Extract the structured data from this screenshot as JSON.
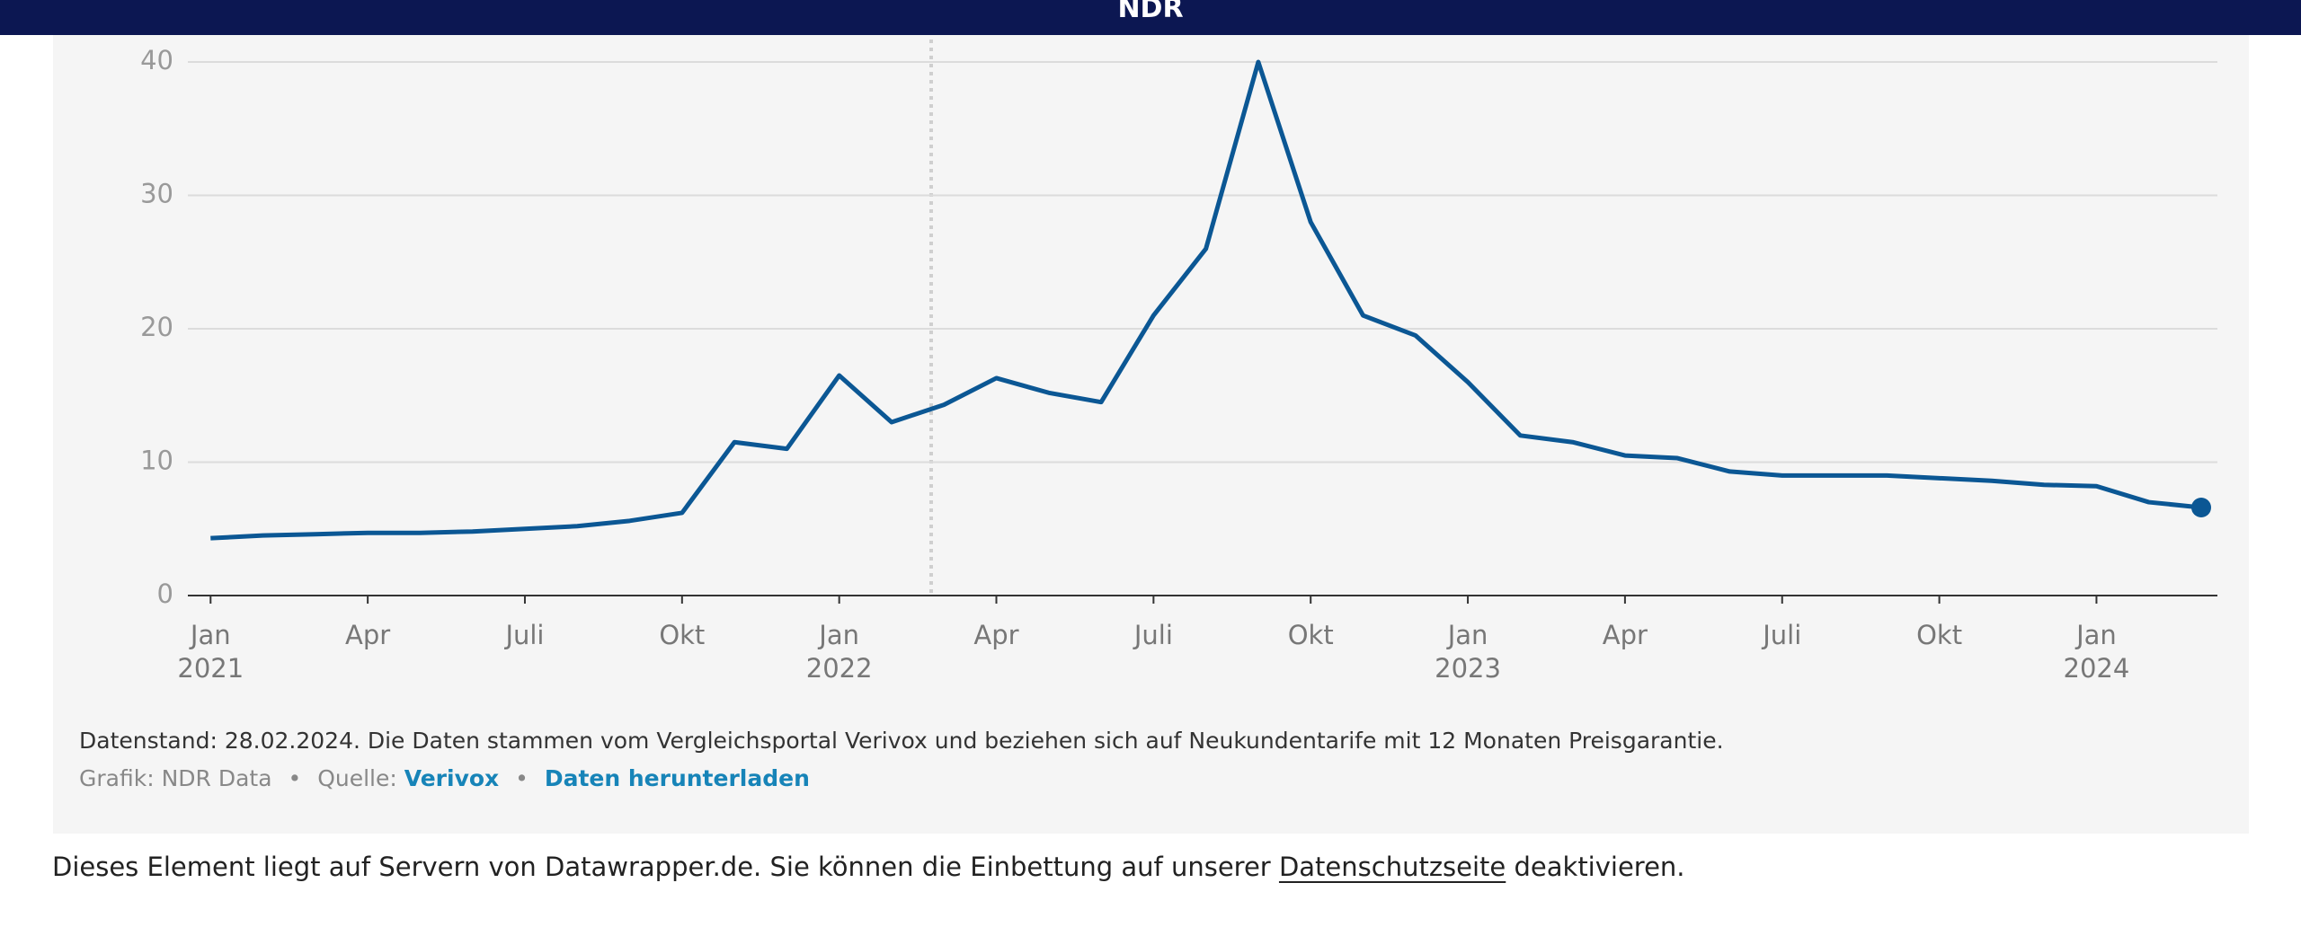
{
  "header": "NDR",
  "chart_data": {
    "type": "line",
    "x": [
      "2021-01",
      "2021-02",
      "2021-03",
      "2021-04",
      "2021-05",
      "2021-06",
      "2021-07",
      "2021-08",
      "2021-09",
      "2021-10",
      "2021-11",
      "2021-12",
      "2022-01",
      "2022-02",
      "2022-03",
      "2022-04",
      "2022-05",
      "2022-06",
      "2022-07",
      "2022-08",
      "2022-09",
      "2022-10",
      "2022-11",
      "2022-12",
      "2023-01",
      "2023-02",
      "2023-03",
      "2023-04",
      "2023-05",
      "2023-06",
      "2023-07",
      "2023-08",
      "2023-09",
      "2023-10",
      "2023-11",
      "2023-12",
      "2024-01",
      "2024-02",
      "2024-03"
    ],
    "series": [
      {
        "name": "Neukundentarif",
        "color": "#0b5794",
        "values": [
          4.3,
          4.5,
          4.6,
          4.7,
          4.7,
          4.8,
          5.0,
          5.2,
          5.6,
          6.2,
          11.5,
          11.0,
          16.5,
          13.0,
          14.3,
          16.3,
          15.2,
          14.5,
          21.0,
          26.0,
          40.0,
          28.0,
          21.0,
          19.5,
          16.0,
          12.0,
          11.5,
          10.5,
          10.3,
          9.3,
          9.0,
          9.0,
          9.0,
          8.8,
          8.6,
          8.3,
          8.2,
          7.0,
          6.6
        ]
      }
    ],
    "xlim": [
      "2020-12",
      "2024-03"
    ],
    "xticks": [
      {
        "value": "2021-01",
        "label": "Jan",
        "year": "2021"
      },
      {
        "value": "2021-04",
        "label": "Apr"
      },
      {
        "value": "2021-07",
        "label": "Juli"
      },
      {
        "value": "2021-10",
        "label": "Okt"
      },
      {
        "value": "2022-01",
        "label": "Jan",
        "year": "2022"
      },
      {
        "value": "2022-04",
        "label": "Apr"
      },
      {
        "value": "2022-07",
        "label": "Juli"
      },
      {
        "value": "2022-10",
        "label": "Okt"
      },
      {
        "value": "2023-01",
        "label": "Jan",
        "year": "2023"
      },
      {
        "value": "2023-04",
        "label": "Apr"
      },
      {
        "value": "2023-07",
        "label": "Juli"
      },
      {
        "value": "2023-10",
        "label": "Okt"
      },
      {
        "value": "2024-01",
        "label": "Jan",
        "year": "2024"
      }
    ],
    "ylim": [
      0,
      40
    ],
    "yticks": [
      0,
      10,
      20,
      30,
      40
    ],
    "grid": true
  },
  "notes": {
    "datenstand": "Datenstand: 28.02.2024. Die Daten stammen vom Vergleichsportal Verivox und beziehen sich auf Neukundentarife mit 12 Monaten Preisgarantie.",
    "credit": "Grafik: NDR Data",
    "separator": "•",
    "source_label": "Quelle:",
    "source": "Verivox",
    "download": "Daten herunterladen"
  },
  "privacy": {
    "before": "Dieses Element liegt auf Servern von Datawrapper.de. Sie können die Einbettung auf unserer",
    "link": "Datenschutzseite",
    "after": "deaktivieren."
  }
}
